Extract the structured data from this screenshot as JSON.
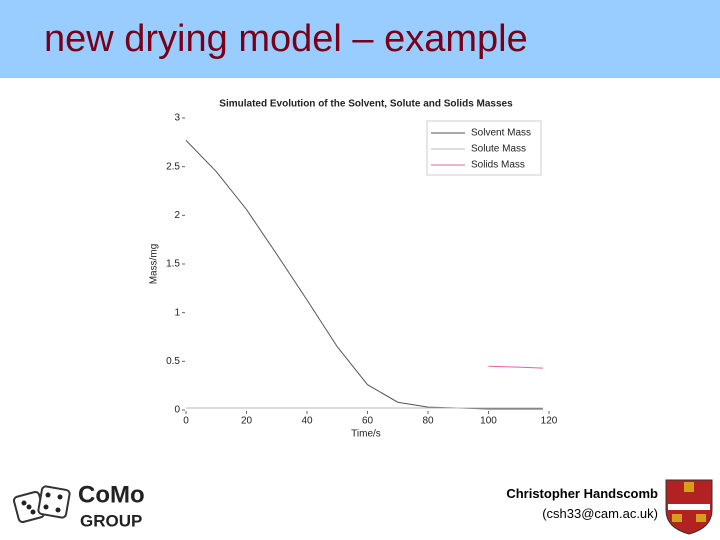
{
  "header": {
    "title": "new drying model – example"
  },
  "chart_data": {
    "type": "line",
    "title": "Simulated Evolution of the Solvent, Solute and Solids Masses",
    "x_label": "Time/s",
    "y_label": "Mass/mg",
    "x": [
      0,
      10,
      20,
      30,
      40,
      50,
      60,
      70,
      80,
      90,
      100,
      110,
      118
    ],
    "series": [
      {
        "name": "Solvent Mass",
        "color": "#555555",
        "values": [
          2.77,
          2.45,
          2.06,
          1.6,
          1.13,
          0.65,
          0.26,
          0.08,
          0.03,
          0.02,
          0.01,
          0.01,
          0.01
        ]
      },
      {
        "name": "Solute Mass",
        "color": "#bbbbbb",
        "values": [
          0.02,
          0.02,
          0.02,
          0.02,
          0.02,
          0.02,
          0.02,
          0.02,
          0.02,
          0.02,
          0.02,
          0.02,
          0.02
        ]
      },
      {
        "name": "Solids Mass",
        "color": "#e060b0",
        "values": [
          null,
          null,
          null,
          null,
          null,
          null,
          null,
          null,
          null,
          null,
          0.45,
          0.44,
          0.43
        ]
      }
    ],
    "xlim": [
      0,
      120
    ],
    "xticks": [
      0,
      20,
      40,
      60,
      80,
      100,
      120
    ],
    "ylim": [
      0,
      3
    ],
    "yticks": [
      0,
      0.5,
      1,
      1.5,
      2,
      2.5,
      3
    ],
    "legend": "upper right"
  },
  "footer": {
    "logo": "CoMo",
    "logo_sub": "GROUP",
    "author": "Christopher Handscomb",
    "email": "(csh33@cam.ac.uk)"
  }
}
